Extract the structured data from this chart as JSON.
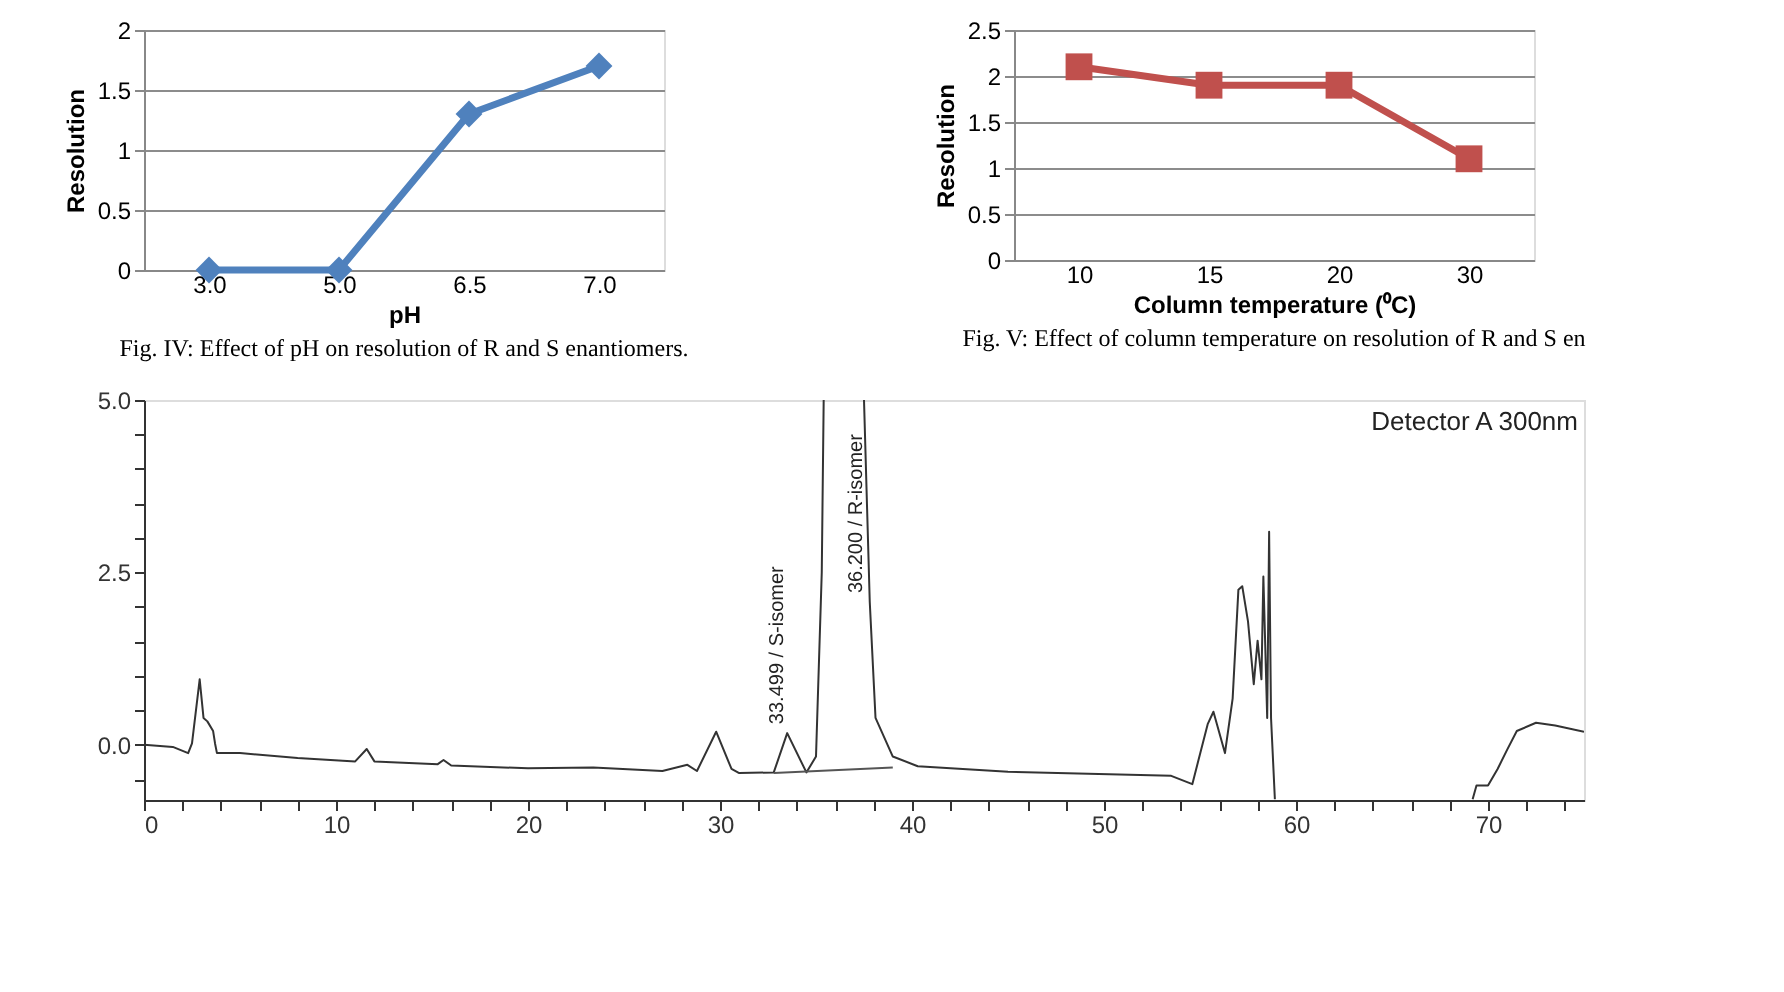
{
  "chart_data": [
    {
      "type": "line",
      "categories": [
        "3.0",
        "5.0",
        "6.5",
        "7.0"
      ],
      "xlabel": "pH",
      "ylabel": "Resolution",
      "ylim": [
        0,
        2
      ],
      "yticks": [
        0,
        0.5,
        1,
        1.5,
        2
      ],
      "grid": "y",
      "marker": "diamond",
      "line_style": "solid",
      "series": [
        {
          "color": "#4f81bd",
          "values": [
            0,
            0,
            1.3,
            1.7
          ]
        }
      ],
      "annotations": [
        "Fig. IV: Effect of pH on resolution of R and S enantiomers."
      ]
    },
    {
      "type": "line",
      "categories": [
        "10",
        "15",
        "20",
        "30"
      ],
      "xlabel": "Column temperature (⁰C)",
      "ylabel": "Resolution",
      "ylim": [
        0,
        2.5
      ],
      "yticks": [
        0,
        0.5,
        1,
        1.5,
        2,
        2.5
      ],
      "grid": "y",
      "marker": "square",
      "line_style": "solid",
      "series": [
        {
          "color": "#c0504d",
          "values": [
            2.1,
            1.9,
            1.9,
            1.1
          ]
        }
      ],
      "annotations": [
        "Fig. V: Effect of column temperature on resolution of R and S en"
      ]
    },
    {
      "type": "line",
      "xlim": [
        0,
        75
      ],
      "ylim": [
        -0.8,
        5.0
      ],
      "grid": false,
      "line_style": "solid",
      "xticks": [
        0,
        {
          "value": 2,
          "label": null
        },
        {
          "value": 4,
          "label": null
        },
        {
          "value": 6,
          "label": null
        },
        {
          "value": 8,
          "label": null
        },
        10,
        {
          "value": 12,
          "label": null
        },
        {
          "value": 14,
          "label": null
        },
        {
          "value": 16,
          "label": null
        },
        {
          "value": 18,
          "label": null
        },
        20,
        {
          "value": 22,
          "label": null
        },
        {
          "value": 24,
          "label": null
        },
        {
          "value": 26,
          "label": null
        },
        {
          "value": 28,
          "label": null
        },
        30,
        {
          "value": 32,
          "label": null
        },
        {
          "value": 34,
          "label": null
        },
        {
          "value": 36,
          "label": null
        },
        {
          "value": 38,
          "label": null
        },
        40,
        {
          "value": 42,
          "label": null
        },
        {
          "value": 44,
          "label": null
        },
        {
          "value": 46,
          "label": null
        },
        {
          "value": 48,
          "label": null
        },
        50,
        {
          "value": 52,
          "label": null
        },
        {
          "value": 54,
          "label": null
        },
        {
          "value": 56,
          "label": null
        },
        {
          "value": 58,
          "label": null
        },
        60,
        {
          "value": 62,
          "label": null
        },
        {
          "value": 64,
          "label": null
        },
        {
          "value": 66,
          "label": null
        },
        {
          "value": 68,
          "label": null
        },
        70,
        {
          "value": 72,
          "label": null
        },
        {
          "value": 74,
          "label": null
        }
      ],
      "yticks": [
        {
          "value": -0.5,
          "label": null
        },
        {
          "value": 0,
          "label": "0.0"
        },
        {
          "value": 0.5,
          "label": null
        },
        {
          "value": 1,
          "label": null
        },
        {
          "value": 1.5,
          "label": null
        },
        {
          "value": 2,
          "label": null
        },
        {
          "value": 2.5,
          "label": "2.5"
        },
        {
          "value": 3,
          "label": null
        },
        {
          "value": 3.5,
          "label": null
        },
        {
          "value": 4,
          "label": null
        },
        {
          "value": 4.5,
          "label": null
        },
        {
          "value": 5,
          "label": "5.0"
        }
      ],
      "series": [
        {
          "color": "#333333",
          "x": [
            0,
            1.5,
            2.3,
            2.5,
            2.9,
            3.1,
            3.3,
            3.6,
            3.7,
            3.8,
            5,
            8,
            11,
            11.6,
            12,
            15.3,
            15.6,
            16,
            20,
            23.4,
            27,
            28.3,
            28.8,
            29.8,
            30.6,
            31,
            32.8,
            33.5,
            34.5,
            35,
            35.3,
            35.4,
            36.2,
            37.5,
            37.8,
            38.1,
            39,
            40.3,
            45,
            53.5,
            54.6,
            55.4,
            55.7,
            56.3,
            56.7,
            57,
            57.2,
            57.5,
            57.8,
            58,
            58.2,
            58.3,
            58.5,
            58.6,
            58.7,
            58.9,
            64,
            69.2,
            69.4,
            70,
            70.5,
            71,
            71.5,
            72.5,
            73.5,
            75
          ],
          "values": [
            0,
            -0.03,
            -0.12,
            0.02,
            0.95,
            0.39,
            0.34,
            0.2,
            0.02,
            -0.12,
            -0.12,
            -0.19,
            -0.24,
            -0.06,
            -0.24,
            -0.28,
            -0.22,
            -0.3,
            -0.34,
            -0.33,
            -0.38,
            -0.29,
            -0.38,
            0.19,
            -0.35,
            -0.41,
            -0.4,
            0.17,
            -0.4,
            -0.17,
            2.5,
            5.0,
            null,
            5.0,
            2.07,
            0.39,
            -0.17,
            -0.31,
            -0.39,
            -0.45,
            -0.57,
            0.3,
            0.48,
            -0.12,
            0.67,
            2.25,
            2.3,
            1.79,
            0.88,
            1.51,
            0.95,
            2.44,
            0.39,
            3.09,
            0.39,
            -0.79,
            null,
            -0.79,
            -0.59,
            -0.59,
            -0.35,
            -0.07,
            0.2,
            0.32,
            0.28,
            0.19
          ]
        },
        {
          "color": "#555555",
          "x": [
            32.8,
            39
          ],
          "values": [
            -0.41,
            -0.33
          ]
        }
      ],
      "annotations": [
        {
          "text": "33.499 / S-isomer",
          "x": 33.499,
          "y": 0.3
        },
        {
          "text": "36.200 / R-isomer",
          "x": 37.6,
          "y": 2.2
        },
        "Detector A 300nm"
      ]
    }
  ]
}
